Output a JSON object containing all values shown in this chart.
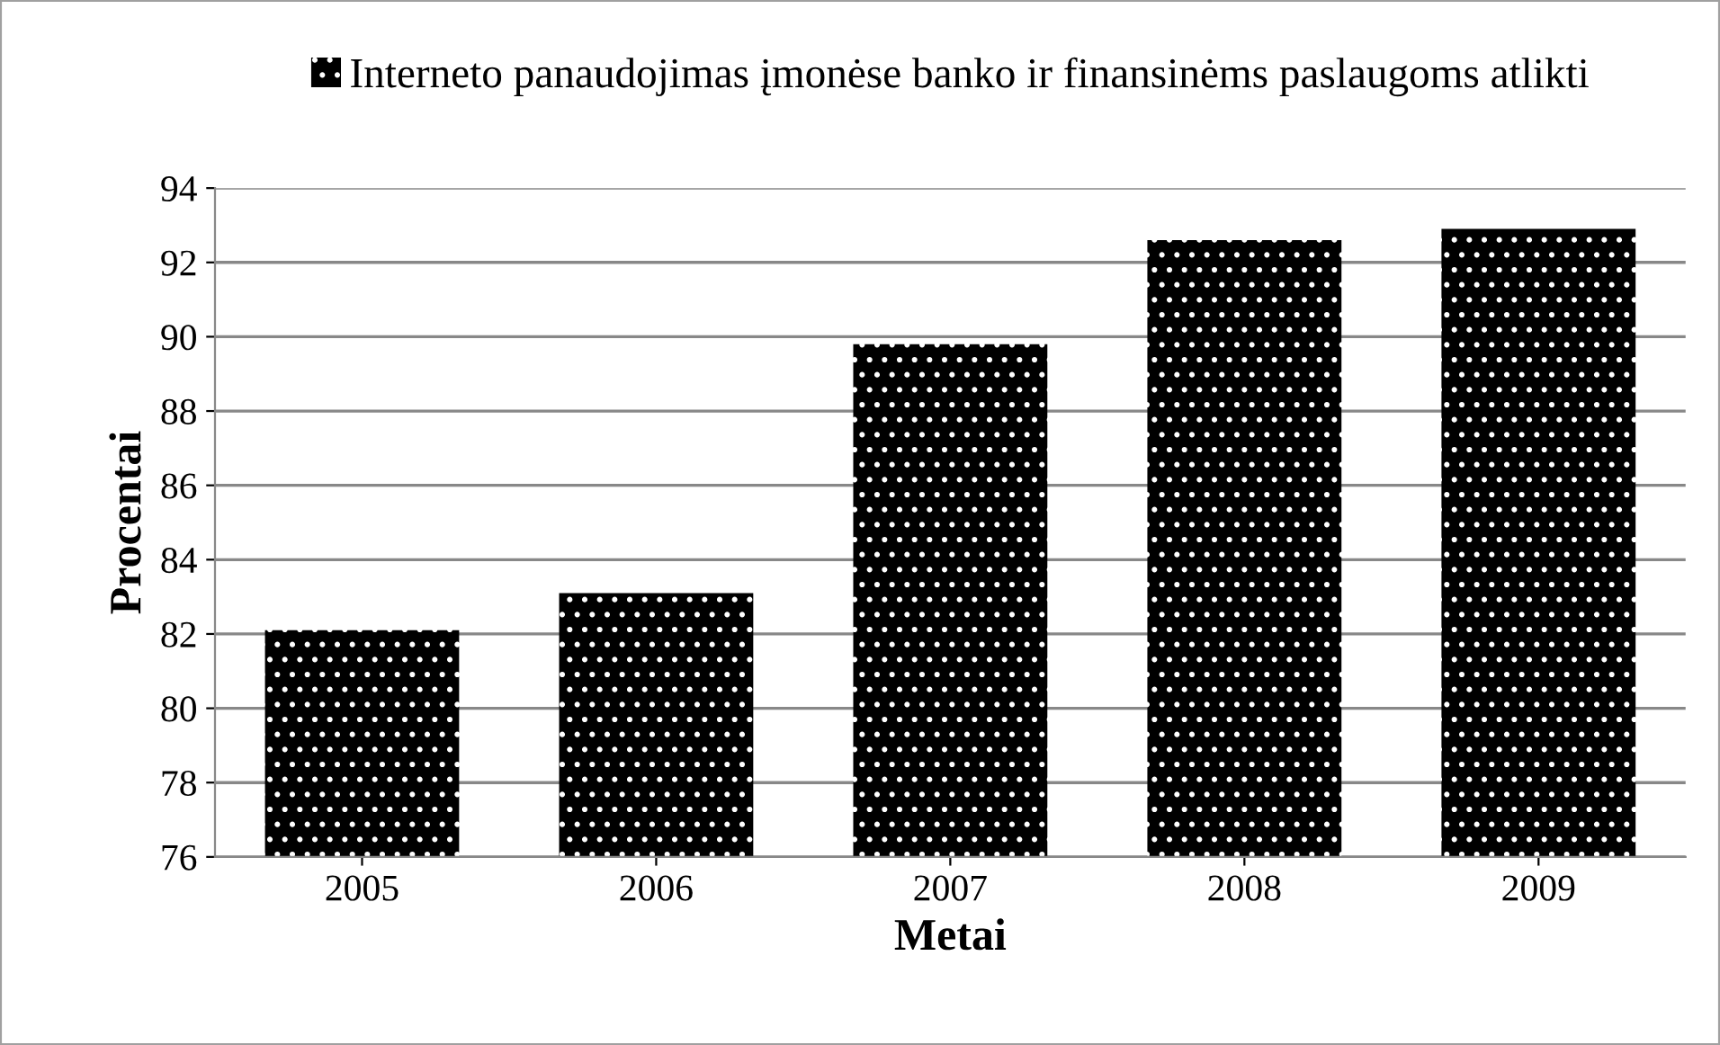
{
  "chart_data": {
    "type": "bar",
    "xlabel": "Metai",
    "ylabel": "Procentai",
    "categories": [
      "2005",
      "2006",
      "2007",
      "2008",
      "2009"
    ],
    "series": [
      {
        "name": "Interneto panaudojimas įmonėse banko ir finansinėms paslaugoms atlikti",
        "color": "#000000",
        "values": [
          82.1,
          83.1,
          89.8,
          92.6,
          92.9
        ]
      }
    ],
    "ylim": [
      76,
      94
    ],
    "yticks": [
      76,
      78,
      80,
      82,
      84,
      86,
      88,
      90,
      92,
      94
    ],
    "grid": "y",
    "legend": "top"
  }
}
